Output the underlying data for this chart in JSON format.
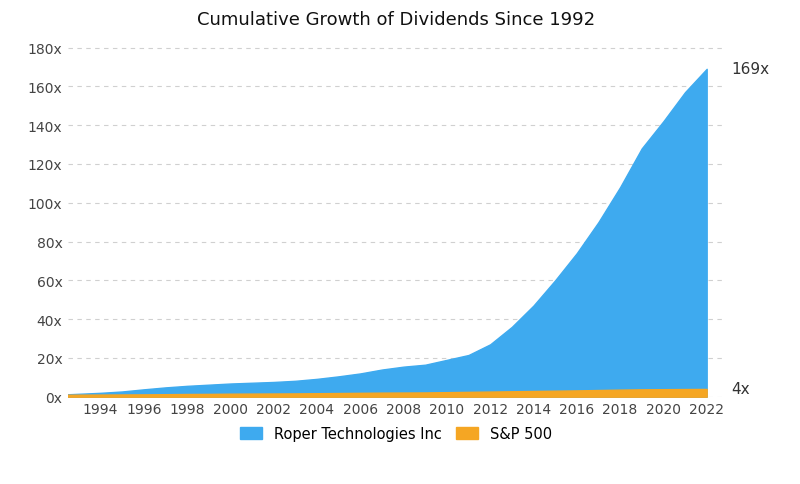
{
  "title": "Cumulative Growth of Dividends Since 1992",
  "years": [
    1992,
    1993,
    1994,
    1995,
    1996,
    1997,
    1998,
    1999,
    2000,
    2001,
    2002,
    2003,
    2004,
    2005,
    2006,
    2007,
    2008,
    2009,
    2010,
    2011,
    2012,
    2013,
    2014,
    2015,
    2016,
    2017,
    2018,
    2019,
    2020,
    2021,
    2022
  ],
  "roper": [
    1,
    1.5,
    2.0,
    2.7,
    3.8,
    4.8,
    5.6,
    6.2,
    6.8,
    7.2,
    7.6,
    8.2,
    9.2,
    10.5,
    12.0,
    14.0,
    15.5,
    16.5,
    19.0,
    21.5,
    27.0,
    36.0,
    47.0,
    60.0,
    74.0,
    90.0,
    108.0,
    128.0,
    142.0,
    157.0,
    169.0
  ],
  "sp500": [
    1,
    1.05,
    1.1,
    1.15,
    1.2,
    1.3,
    1.4,
    1.45,
    1.55,
    1.6,
    1.65,
    1.7,
    1.8,
    1.9,
    2.0,
    2.1,
    2.15,
    2.2,
    2.35,
    2.5,
    2.65,
    2.8,
    2.95,
    3.1,
    3.25,
    3.45,
    3.65,
    3.8,
    3.88,
    3.95,
    4.0
  ],
  "roper_color": "#3eaaef",
  "sp500_color": "#f5a623",
  "roper_label": "Roper Technologies Inc",
  "sp500_label": "S&P 500",
  "roper_annotation": "169x",
  "sp500_annotation": "4x",
  "yticks": [
    0,
    20,
    40,
    60,
    80,
    100,
    120,
    140,
    160,
    180
  ],
  "ytick_labels": [
    "0x",
    "20x",
    "40x",
    "60x",
    "80x",
    "100x",
    "120x",
    "140x",
    "160x",
    "180x"
  ],
  "xticks": [
    1994,
    1996,
    1998,
    2000,
    2002,
    2004,
    2006,
    2008,
    2010,
    2012,
    2014,
    2016,
    2018,
    2020,
    2022
  ],
  "ylim": [
    0,
    185
  ],
  "xlim": [
    1992.5,
    2022.8
  ],
  "background_color": "#ffffff",
  "grid_color": "#d0d0d0",
  "title_fontsize": 13,
  "tick_fontsize": 10,
  "legend_fontsize": 10.5,
  "annotation_fontsize": 11
}
